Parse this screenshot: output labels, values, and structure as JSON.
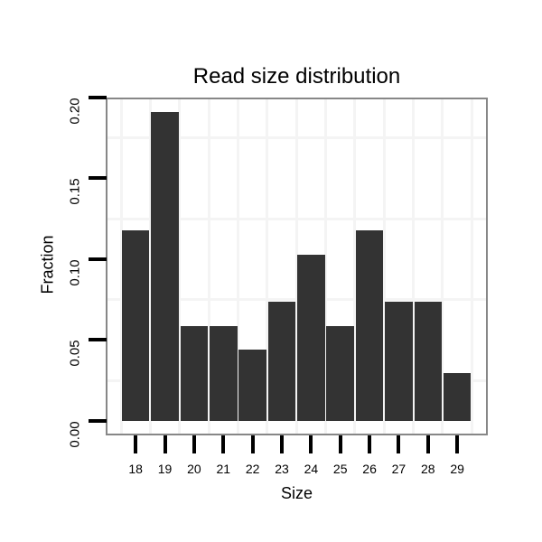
{
  "title": "Read size distribution",
  "x_axis": {
    "label": "Size",
    "tick_labels": [
      "18",
      "19",
      "20",
      "21",
      "22",
      "23",
      "24",
      "25",
      "26",
      "27",
      "28",
      "29"
    ]
  },
  "y_axis": {
    "label": "Fraction",
    "tick_labels": [
      "0.00",
      "0.05",
      "0.10",
      "0.15",
      "0.20"
    ],
    "tick_values": [
      0.0,
      0.05,
      0.1,
      0.15,
      0.2
    ]
  },
  "colors": {
    "bar_fill": "#333333",
    "panel_border": "#878787",
    "gridline_minor": "#f4f4f4",
    "tick_mark": "#000000",
    "text": "#000000",
    "background": "#ffffff"
  },
  "chart_data": {
    "type": "bar",
    "title": "Read size distribution",
    "xlabel": "Size",
    "ylabel": "Fraction",
    "categories": [
      18,
      19,
      20,
      21,
      22,
      23,
      24,
      25,
      26,
      27,
      28,
      29
    ],
    "values": [
      0.1176,
      0.1912,
      0.0588,
      0.0588,
      0.0441,
      0.0735,
      0.1029,
      0.0588,
      0.1176,
      0.0735,
      0.0735,
      0.0294
    ],
    "ylim": [
      0.0,
      0.2
    ],
    "y_tick_step": 0.05,
    "grid": "minor-gridlines-only",
    "legend": "none",
    "bar_color": "#333333"
  }
}
